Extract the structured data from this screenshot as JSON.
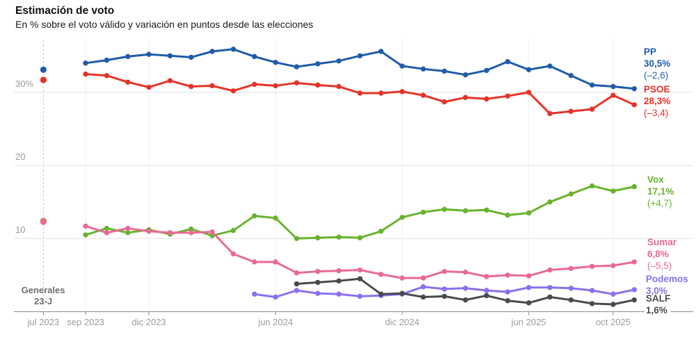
{
  "header": {
    "title": "Estimación de voto",
    "subtitle": "En % sobre el voto válido y variación en puntos desde las elecciones"
  },
  "annotation": {
    "line1": "Generales",
    "line2": "23-J"
  },
  "y_axis": {
    "ticks": [
      {
        "value": 30,
        "label": "30%"
      },
      {
        "value": 20,
        "label": "20"
      },
      {
        "value": 10,
        "label": "10"
      }
    ]
  },
  "x_axis": {
    "ticks": [
      {
        "label": "jul 2023",
        "month_index": -2,
        "dashed": true
      },
      {
        "label": "sep 2023",
        "month_index": 0
      },
      {
        "label": "dic 2023",
        "month_index": 3
      },
      {
        "label": "jun 2024",
        "month_index": 9
      },
      {
        "label": "dic 2024",
        "month_index": 15
      },
      {
        "label": "jun 2025",
        "month_index": 21
      },
      {
        "label": "oct 2025",
        "month_index": 25
      }
    ]
  },
  "colors": {
    "grid_horizontal": "#e3e3e3",
    "grid_vertical": "#eeeeee",
    "dashed_election_line": "#c9c9c9",
    "axis": "#9b9b9b"
  },
  "chart_data": {
    "type": "line",
    "title": "Estimación de voto",
    "ylabel": "% sobre el voto válido",
    "ylim": [
      0,
      37
    ],
    "grid": true,
    "election_label": "jul 2023",
    "x": [
      "sep 2023",
      "oct 2023",
      "nov 2023",
      "dic 2023",
      "ene 2024",
      "feb 2024",
      "mar 2024",
      "abr 2024",
      "may 2024",
      "jun 2024",
      "jul 2024",
      "ago 2024",
      "sep 2024",
      "oct 2024",
      "nov 2024",
      "dic 2024",
      "ene 2025",
      "feb 2025",
      "mar 2025",
      "abr 2025",
      "may 2025",
      "jun 2025",
      "jul 2025",
      "ago 2025",
      "sep 2025",
      "oct 2025",
      "nov 2025"
    ],
    "series": [
      {
        "name": "PP",
        "color": "#1f5ca9",
        "current": "30,5%",
        "delta": "(–2,6)",
        "election_value": 33.1,
        "start_index": 0,
        "values": [
          34.0,
          34.4,
          34.9,
          35.2,
          35.0,
          34.8,
          35.6,
          35.9,
          34.9,
          34.1,
          33.5,
          33.9,
          34.3,
          35.0,
          35.6,
          33.6,
          33.2,
          32.9,
          32.4,
          33.0,
          34.2,
          33.1,
          33.6,
          32.3,
          31.0,
          30.8,
          30.5
        ]
      },
      {
        "name": "PSOE",
        "color": "#e63329",
        "current": "28,3%",
        "delta": "(–3,4)",
        "election_value": 31.7,
        "start_index": 0,
        "values": [
          32.5,
          32.3,
          31.4,
          30.7,
          31.6,
          30.8,
          30.9,
          30.2,
          31.1,
          30.9,
          31.3,
          31.0,
          30.8,
          29.9,
          29.9,
          30.1,
          29.6,
          28.7,
          29.3,
          29.1,
          29.5,
          30.0,
          27.1,
          27.4,
          27.7,
          29.6,
          28.3
        ]
      },
      {
        "name": "Vox",
        "color": "#67b32e",
        "current": "17,1%",
        "delta": "(+4,7)",
        "election_value": 12.4,
        "start_index": 0,
        "values": [
          10.5,
          11.4,
          10.8,
          11.2,
          10.6,
          11.3,
          10.4,
          11.1,
          13.1,
          12.8,
          10.0,
          10.1,
          10.2,
          10.1,
          11.0,
          12.9,
          13.6,
          14.0,
          13.8,
          13.9,
          13.2,
          13.5,
          15.0,
          16.1,
          17.2,
          16.5,
          17.1
        ]
      },
      {
        "name": "Sumar",
        "color": "#e96a93",
        "current": "6,8%",
        "delta": "(–5,5)",
        "election_value": 12.3,
        "start_index": 0,
        "values": [
          11.7,
          10.8,
          11.4,
          11.0,
          10.8,
          10.8,
          10.9,
          7.9,
          6.8,
          6.8,
          5.3,
          5.5,
          5.6,
          5.7,
          5.1,
          4.6,
          4.6,
          5.5,
          5.4,
          4.8,
          5.0,
          4.9,
          5.7,
          5.9,
          6.2,
          6.3,
          6.8
        ]
      },
      {
        "name": "Podemos",
        "color": "#8b6ff0",
        "current": "3,0%",
        "delta": null,
        "election_value": null,
        "start_index": 8,
        "values": [
          2.4,
          2.0,
          2.9,
          2.5,
          2.4,
          2.1,
          2.2,
          2.4,
          3.4,
          3.1,
          3.2,
          2.9,
          2.7,
          3.3,
          3.3,
          3.2,
          2.9,
          2.4,
          3.0
        ]
      },
      {
        "name": "SALF",
        "color": "#474b4e",
        "current": "1,6%",
        "delta": null,
        "election_value": null,
        "start_index": 10,
        "values": [
          3.8,
          4.0,
          4.2,
          4.5,
          2.4,
          2.5,
          2.0,
          2.1,
          1.6,
          2.2,
          1.5,
          1.2,
          2.0,
          1.6,
          1.1,
          1.0,
          1.6
        ]
      }
    ]
  }
}
